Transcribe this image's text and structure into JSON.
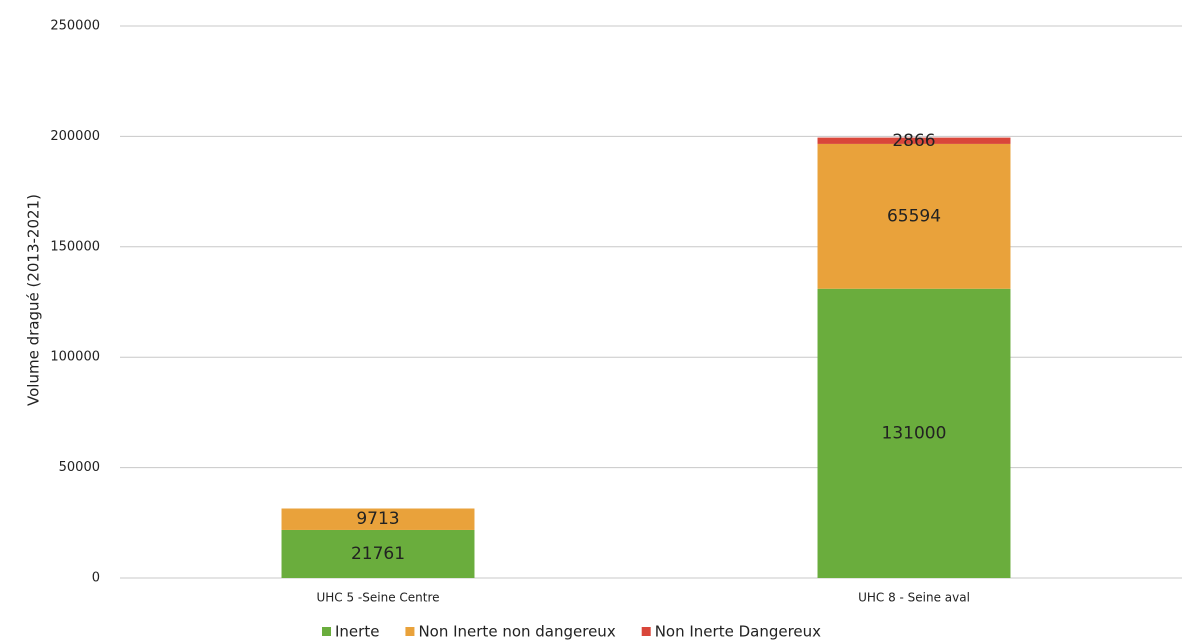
{
  "chart_data": {
    "type": "stacked_bar",
    "y_label": "Volume dragué (2013-2021)",
    "categories": [
      "UHC 5 -Seine Centre",
      "UHC 8 - Seine aval"
    ],
    "series": [
      {
        "name": "Inerte",
        "color": "#6aad3d",
        "values": [
          21761,
          131000
        ]
      },
      {
        "name": "Non Inerte non dangereux",
        "color": "#e9a23b",
        "values": [
          9713,
          65594
        ]
      },
      {
        "name": "Non Inerte Dangereux",
        "color": "#d9463a",
        "values": [
          null,
          2866
        ]
      }
    ],
    "ylim": [
      0,
      250000
    ],
    "yticks": [
      0,
      50000,
      100000,
      150000,
      200000,
      250000
    ],
    "grid": true,
    "legend": "bottom"
  }
}
